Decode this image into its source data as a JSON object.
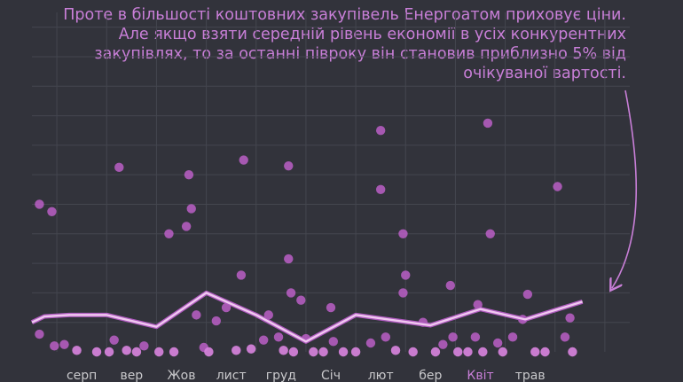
{
  "annotation": "Проте в більшості коштовних закупівель Енергоатом приховує ціни. Але якщо взяти середній рівень економії в усіх конкурентних закупівлях, то за останні півроку він становив приблизно 5% від очікуваної вартості.",
  "colors": {
    "background": "#32333b",
    "grid": "#44464f",
    "dot": "#c060cc",
    "dot_light": "#e59ae8",
    "line": "#f0c8f0",
    "annotation": "#c97fd8",
    "tick": "#c9c9cc"
  },
  "chart_data": {
    "type": "scatter",
    "title": "",
    "xlabel": "",
    "ylabel": "",
    "xlim": [
      0,
      24
    ],
    "ylim": [
      0,
      23
    ],
    "grid": true,
    "highlight_tick": "Квіт",
    "x_ticks": [
      {
        "x": 2,
        "label": "серп"
      },
      {
        "x": 4,
        "label": "вер"
      },
      {
        "x": 6,
        "label": "Жов"
      },
      {
        "x": 8,
        "label": "лист"
      },
      {
        "x": 10,
        "label": "груд"
      },
      {
        "x": 12,
        "label": "Січ"
      },
      {
        "x": 14,
        "label": "лют"
      },
      {
        "x": 16,
        "label": "бер"
      },
      {
        "x": 18,
        "label": "Квіт"
      },
      {
        "x": 20,
        "label": "трав"
      }
    ],
    "series": [
      {
        "type": "scatter",
        "points": [
          [
            0.3,
            10
          ],
          [
            0.8,
            9.5
          ],
          [
            0.3,
            1.2
          ],
          [
            0.9,
            0.4
          ],
          [
            1.3,
            0.5
          ],
          [
            1.8,
            0.1
          ],
          [
            2.6,
            0
          ],
          [
            3.1,
            0
          ],
          [
            3.5,
            12.5
          ],
          [
            3.3,
            0.8
          ],
          [
            3.8,
            0.1
          ],
          [
            4.2,
            0
          ],
          [
            4.5,
            0.4
          ],
          [
            5.1,
            0
          ],
          [
            5.5,
            8
          ],
          [
            5.7,
            0
          ],
          [
            6.2,
            8.5
          ],
          [
            6.3,
            12
          ],
          [
            6.4,
            9.7
          ],
          [
            6.6,
            2.5
          ],
          [
            6.9,
            0.3
          ],
          [
            7.1,
            0
          ],
          [
            7.4,
            2.1
          ],
          [
            7.8,
            3
          ],
          [
            8.2,
            0.1
          ],
          [
            8.4,
            5.2
          ],
          [
            8.5,
            13
          ],
          [
            8.8,
            0.2
          ],
          [
            9.3,
            0.8
          ],
          [
            9.5,
            2.5
          ],
          [
            9.9,
            1
          ],
          [
            10.1,
            0.1
          ],
          [
            10.4,
            4
          ],
          [
            10.3,
            6.3
          ],
          [
            10.3,
            12.6
          ],
          [
            10.5,
            0
          ],
          [
            10.8,
            3.5
          ],
          [
            11,
            0.9
          ],
          [
            11.3,
            0
          ],
          [
            11.7,
            0
          ],
          [
            12,
            3
          ],
          [
            12.1,
            0.7
          ],
          [
            12.5,
            0
          ],
          [
            13,
            0
          ],
          [
            13.6,
            0.6
          ],
          [
            14,
            15
          ],
          [
            14,
            11
          ],
          [
            14.2,
            1
          ],
          [
            14.6,
            0.1
          ],
          [
            14.9,
            4
          ],
          [
            14.9,
            8
          ],
          [
            15,
            5.2
          ],
          [
            15.3,
            0
          ],
          [
            15.7,
            2
          ],
          [
            16.2,
            0
          ],
          [
            16.5,
            0.5
          ],
          [
            16.8,
            4.5
          ],
          [
            16.9,
            1
          ],
          [
            17.1,
            0
          ],
          [
            17.5,
            0
          ],
          [
            17.9,
            3.2
          ],
          [
            17.8,
            1
          ],
          [
            18.1,
            0
          ],
          [
            18.3,
            15.5
          ],
          [
            18.4,
            8
          ],
          [
            18.7,
            0.6
          ],
          [
            18.9,
            0
          ],
          [
            19.3,
            1
          ],
          [
            19.7,
            2.2
          ],
          [
            19.9,
            3.9
          ],
          [
            20.2,
            0
          ],
          [
            20.6,
            0
          ],
          [
            21.1,
            11.2
          ],
          [
            21.4,
            1
          ],
          [
            21.6,
            2.3
          ],
          [
            21.7,
            0
          ]
        ]
      },
      {
        "type": "line",
        "points": [
          [
            0,
            2
          ],
          [
            0.5,
            2.4
          ],
          [
            1.5,
            2.5
          ],
          [
            3,
            2.5
          ],
          [
            5,
            1.7
          ],
          [
            7,
            4
          ],
          [
            9,
            2.5
          ],
          [
            11,
            0.7
          ],
          [
            13,
            2.5
          ],
          [
            16,
            1.8
          ],
          [
            18,
            2.9
          ],
          [
            19.8,
            2.2
          ],
          [
            22.1,
            3.4
          ]
        ]
      }
    ]
  }
}
